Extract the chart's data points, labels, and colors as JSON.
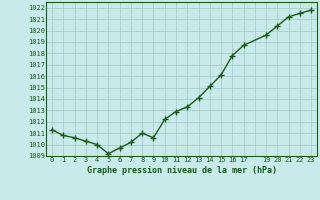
{
  "x": [
    0,
    1,
    2,
    3,
    4,
    5,
    6,
    7,
    8,
    9,
    10,
    11,
    12,
    13,
    14,
    15,
    16,
    17,
    19,
    20,
    21,
    22,
    23
  ],
  "y": [
    1011.3,
    1010.8,
    1010.6,
    1010.3,
    1010.0,
    1009.2,
    1009.7,
    1010.2,
    1011.0,
    1010.6,
    1012.2,
    1012.9,
    1013.3,
    1014.1,
    1015.1,
    1016.1,
    1017.8,
    1018.7,
    1019.6,
    1020.4,
    1021.2,
    1021.5,
    1021.8
  ],
  "xlim": [
    -0.5,
    23.5
  ],
  "ylim": [
    1009,
    1022.5
  ],
  "yticks": [
    1009,
    1010,
    1011,
    1012,
    1013,
    1014,
    1015,
    1016,
    1017,
    1018,
    1019,
    1020,
    1021,
    1022
  ],
  "xtick_positions": [
    0,
    1,
    2,
    3,
    4,
    5,
    6,
    7,
    8,
    9,
    10,
    11,
    12,
    13,
    14,
    15,
    16,
    17,
    18,
    19,
    20,
    21,
    22,
    23
  ],
  "xtick_labels": [
    "0",
    "1",
    "2",
    "3",
    "4",
    "5",
    "6",
    "7",
    "8",
    "9",
    "10",
    "11",
    "12",
    "13",
    "14",
    "15",
    "16",
    "17",
    "",
    "19",
    "20",
    "21",
    "22",
    "23"
  ],
  "xlabel": "Graphe pression niveau de la mer (hPa)",
  "line_color": "#1a5c1a",
  "marker": "+",
  "marker_size": 4,
  "bg_color": "#c8eaea",
  "grid_color": "#a0c8c0",
  "tick_label_color": "#1a5c1a",
  "xlabel_color": "#1a5c1a",
  "line_width": 1.0
}
